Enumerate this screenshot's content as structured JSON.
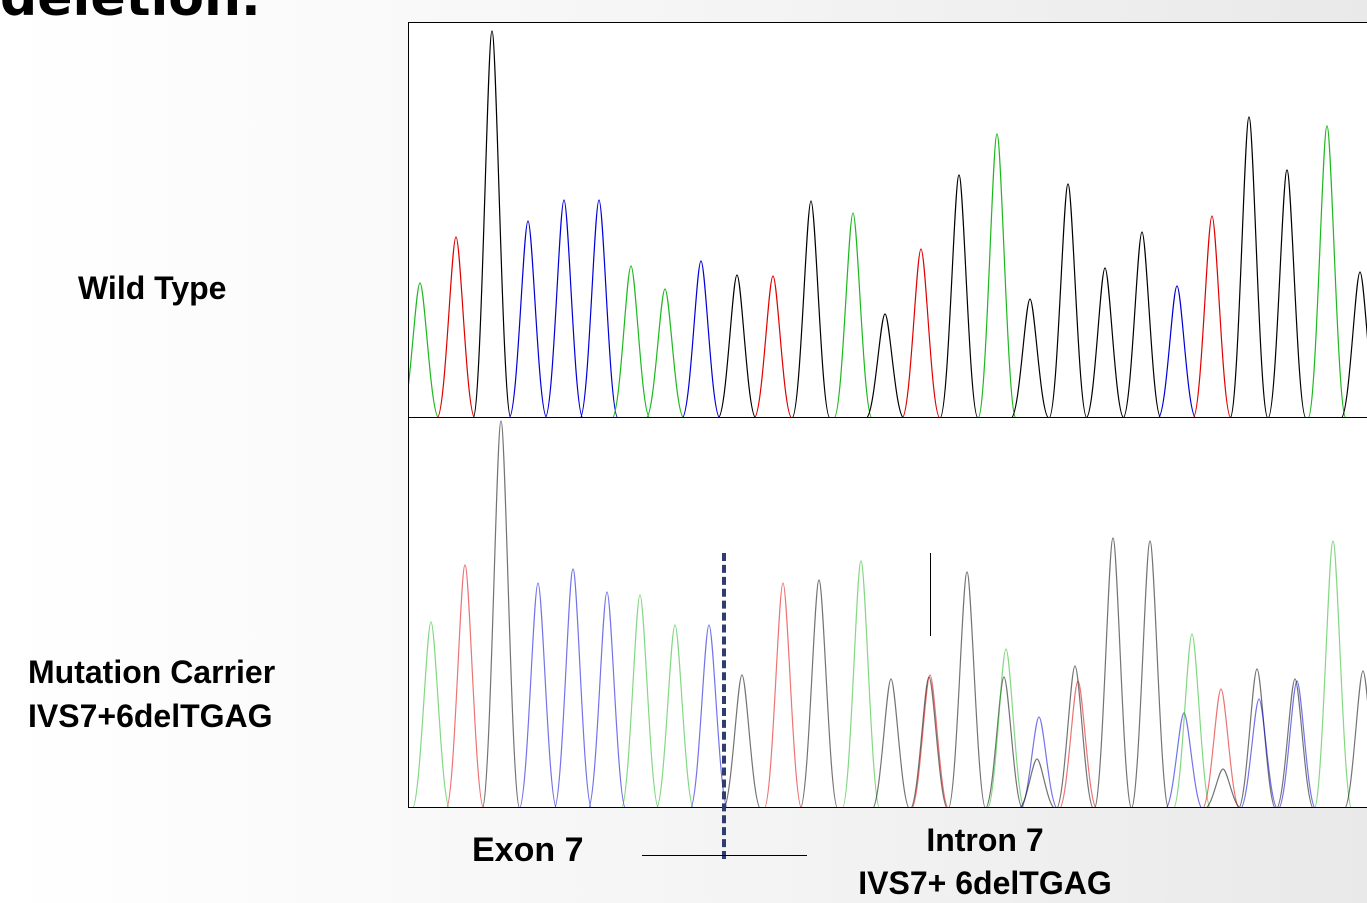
{
  "title": "deletion.",
  "labels": {
    "wild_type": "Wild Type",
    "carrier_line1": "Mutation Carrier",
    "carrier_line2": "IVS7+6delTGAG",
    "exon": "Exon 7",
    "intron_line1": "Intron 7",
    "intron_line2": "IVS7+ 6delTGAG"
  },
  "colors": {
    "A": "#1db81d",
    "T": "#e00000",
    "G": "#000000",
    "C": "#0000d8",
    "boundary_dash": "#2f3d73"
  },
  "traces": {
    "wild_type": {
      "peaks": [
        {
          "x": 419,
          "h": 282,
          "base": "A"
        },
        {
          "x": 455,
          "h": 236,
          "base": "T"
        },
        {
          "x": 491,
          "h": 30,
          "base": "G"
        },
        {
          "x": 527,
          "h": 220,
          "base": "C"
        },
        {
          "x": 563,
          "h": 199,
          "base": "C"
        },
        {
          "x": 598,
          "h": 199,
          "base": "C"
        },
        {
          "x": 630,
          "h": 265,
          "base": "A"
        },
        {
          "x": 664,
          "h": 288,
          "base": "A"
        },
        {
          "x": 700,
          "h": 260,
          "base": "C"
        },
        {
          "x": 736,
          "h": 274,
          "base": "G"
        },
        {
          "x": 772,
          "h": 275,
          "base": "T"
        },
        {
          "x": 810,
          "h": 200,
          "base": "G"
        },
        {
          "x": 852,
          "h": 212,
          "base": "A"
        },
        {
          "x": 884,
          "h": 313,
          "base": "G"
        },
        {
          "x": 920,
          "h": 248,
          "base": "T"
        },
        {
          "x": 958,
          "h": 174,
          "base": "G"
        },
        {
          "x": 996,
          "h": 133,
          "base": "A"
        },
        {
          "x": 1029,
          "h": 298,
          "base": "G"
        },
        {
          "x": 1067,
          "h": 183,
          "base": "G"
        },
        {
          "x": 1104,
          "h": 267,
          "base": "G"
        },
        {
          "x": 1141,
          "h": 231,
          "base": "G"
        },
        {
          "x": 1176,
          "h": 285,
          "base": "C"
        },
        {
          "x": 1211,
          "h": 215,
          "base": "T"
        },
        {
          "x": 1248,
          "h": 116,
          "base": "G"
        },
        {
          "x": 1286,
          "h": 169,
          "base": "G"
        },
        {
          "x": 1326,
          "h": 125,
          "base": "A"
        },
        {
          "x": 1359,
          "h": 271,
          "base": "G"
        }
      ]
    },
    "mutation_carrier": {
      "peaks": [
        {
          "x": 430,
          "h": 621,
          "base": "A"
        },
        {
          "x": 464,
          "h": 564,
          "base": "T"
        },
        {
          "x": 500,
          "h": 420,
          "base": "G"
        },
        {
          "x": 537,
          "h": 582,
          "base": "C"
        },
        {
          "x": 572,
          "h": 568,
          "base": "C"
        },
        {
          "x": 606,
          "h": 591,
          "base": "C"
        },
        {
          "x": 639,
          "h": 594,
          "base": "A"
        },
        {
          "x": 674,
          "h": 624,
          "base": "A"
        },
        {
          "x": 708,
          "h": 624,
          "base": "C"
        },
        {
          "x": 741,
          "h": 674,
          "base": "G"
        },
        {
          "x": 782,
          "h": 582,
          "base": "T"
        },
        {
          "x": 818,
          "h": 579,
          "base": "G"
        },
        {
          "x": 860,
          "h": 560,
          "base": "A"
        },
        {
          "x": 890,
          "h": 678,
          "base": "G"
        },
        {
          "x": 929,
          "h": 674,
          "base": "T"
        },
        {
          "x": 928,
          "h": 676,
          "base": "G"
        },
        {
          "x": 966,
          "h": 571,
          "base": "G"
        },
        {
          "x": 1003,
          "h": 676,
          "base": "G"
        },
        {
          "x": 1005,
          "h": 648,
          "base": "A"
        },
        {
          "x": 1038,
          "h": 716,
          "base": "C"
        },
        {
          "x": 1036,
          "h": 758,
          "base": "G"
        },
        {
          "x": 1074,
          "h": 665,
          "base": "G"
        },
        {
          "x": 1077,
          "h": 680,
          "base": "T"
        },
        {
          "x": 1112,
          "h": 537,
          "base": "G"
        },
        {
          "x": 1149,
          "h": 540,
          "base": "G"
        },
        {
          "x": 1183,
          "h": 712,
          "base": "C"
        },
        {
          "x": 1191,
          "h": 633,
          "base": "A"
        },
        {
          "x": 1220,
          "h": 688,
          "base": "T"
        },
        {
          "x": 1222,
          "h": 768,
          "base": "G"
        },
        {
          "x": 1256,
          "h": 668,
          "base": "G"
        },
        {
          "x": 1258,
          "h": 698,
          "base": "C"
        },
        {
          "x": 1294,
          "h": 678,
          "base": "G"
        },
        {
          "x": 1296,
          "h": 680,
          "base": "C"
        },
        {
          "x": 1332,
          "h": 540,
          "base": "A"
        },
        {
          "x": 1362,
          "h": 670,
          "base": "G"
        }
      ]
    }
  }
}
